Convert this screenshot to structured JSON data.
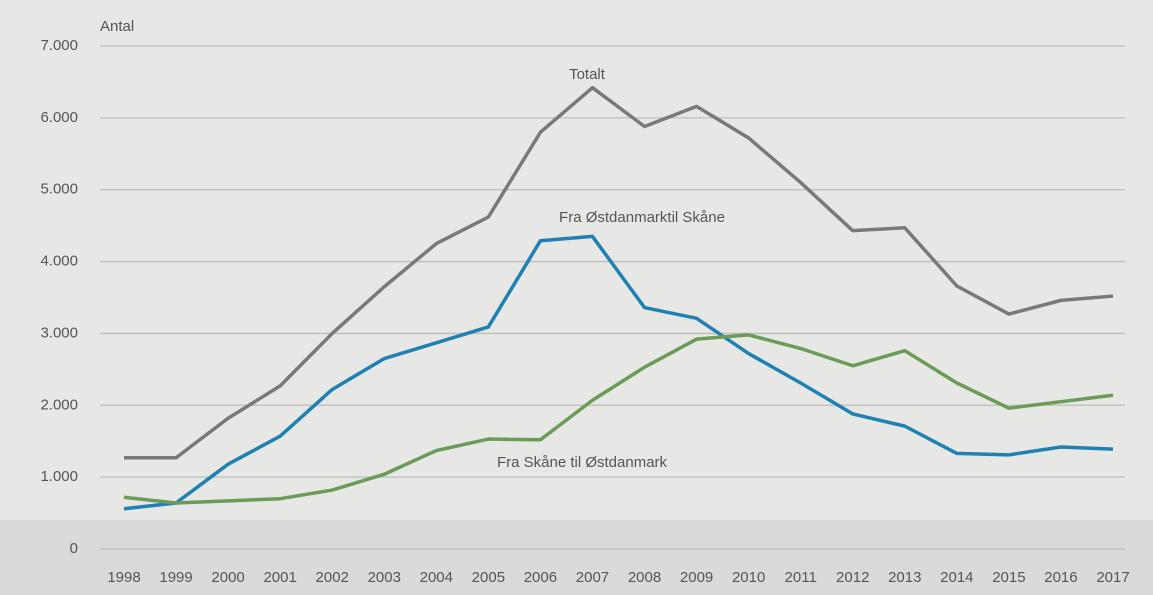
{
  "chart_data": {
    "type": "line",
    "y_label": "Antal",
    "categories": [
      "1998",
      "1999",
      "2000",
      "2001",
      "2002",
      "2003",
      "2004",
      "2005",
      "2006",
      "2007",
      "2008",
      "2009",
      "2010",
      "2011",
      "2012",
      "2013",
      "2014",
      "2015",
      "2016",
      "2017"
    ],
    "series": [
      {
        "name": "Totalt",
        "color": "#797977",
        "values": [
          1270,
          1270,
          1820,
          2270,
          3000,
          3650,
          4250,
          4620,
          5800,
          6420,
          5880,
          6160,
          5720,
          5100,
          4430,
          4470,
          3660,
          3270,
          3460,
          3520
        ]
      },
      {
        "name": "Fra Østdanmarktil Skåne",
        "color": "#1f80b2",
        "values": [
          560,
          640,
          1180,
          1570,
          2220,
          2650,
          2870,
          3090,
          4290,
          4350,
          3360,
          3210,
          2720,
          2310,
          1880,
          1710,
          1330,
          1310,
          1420,
          1390
        ]
      },
      {
        "name": "Fra Skåne til Østdanmark",
        "color": "#6b9b56",
        "values": [
          720,
          640,
          670,
          700,
          820,
          1040,
          1370,
          1530,
          1520,
          2070,
          2530,
          2920,
          2980,
          2790,
          2550,
          2760,
          2310,
          1960,
          2050,
          2140
        ]
      }
    ],
    "ylim": [
      0,
      7000
    ],
    "yticks": [
      0,
      {
        "value": 1000,
        "label": "1.000"
      },
      {
        "value": 2000,
        "label": "2.000"
      },
      {
        "value": 3000,
        "label": "3.000"
      },
      {
        "value": 4000,
        "label": "4.000"
      },
      {
        "value": 5000,
        "label": "5.000"
      },
      {
        "value": 6000,
        "label": "6.000"
      },
      {
        "value": 7000,
        "label": "7.000"
      }
    ],
    "grid": true
  }
}
